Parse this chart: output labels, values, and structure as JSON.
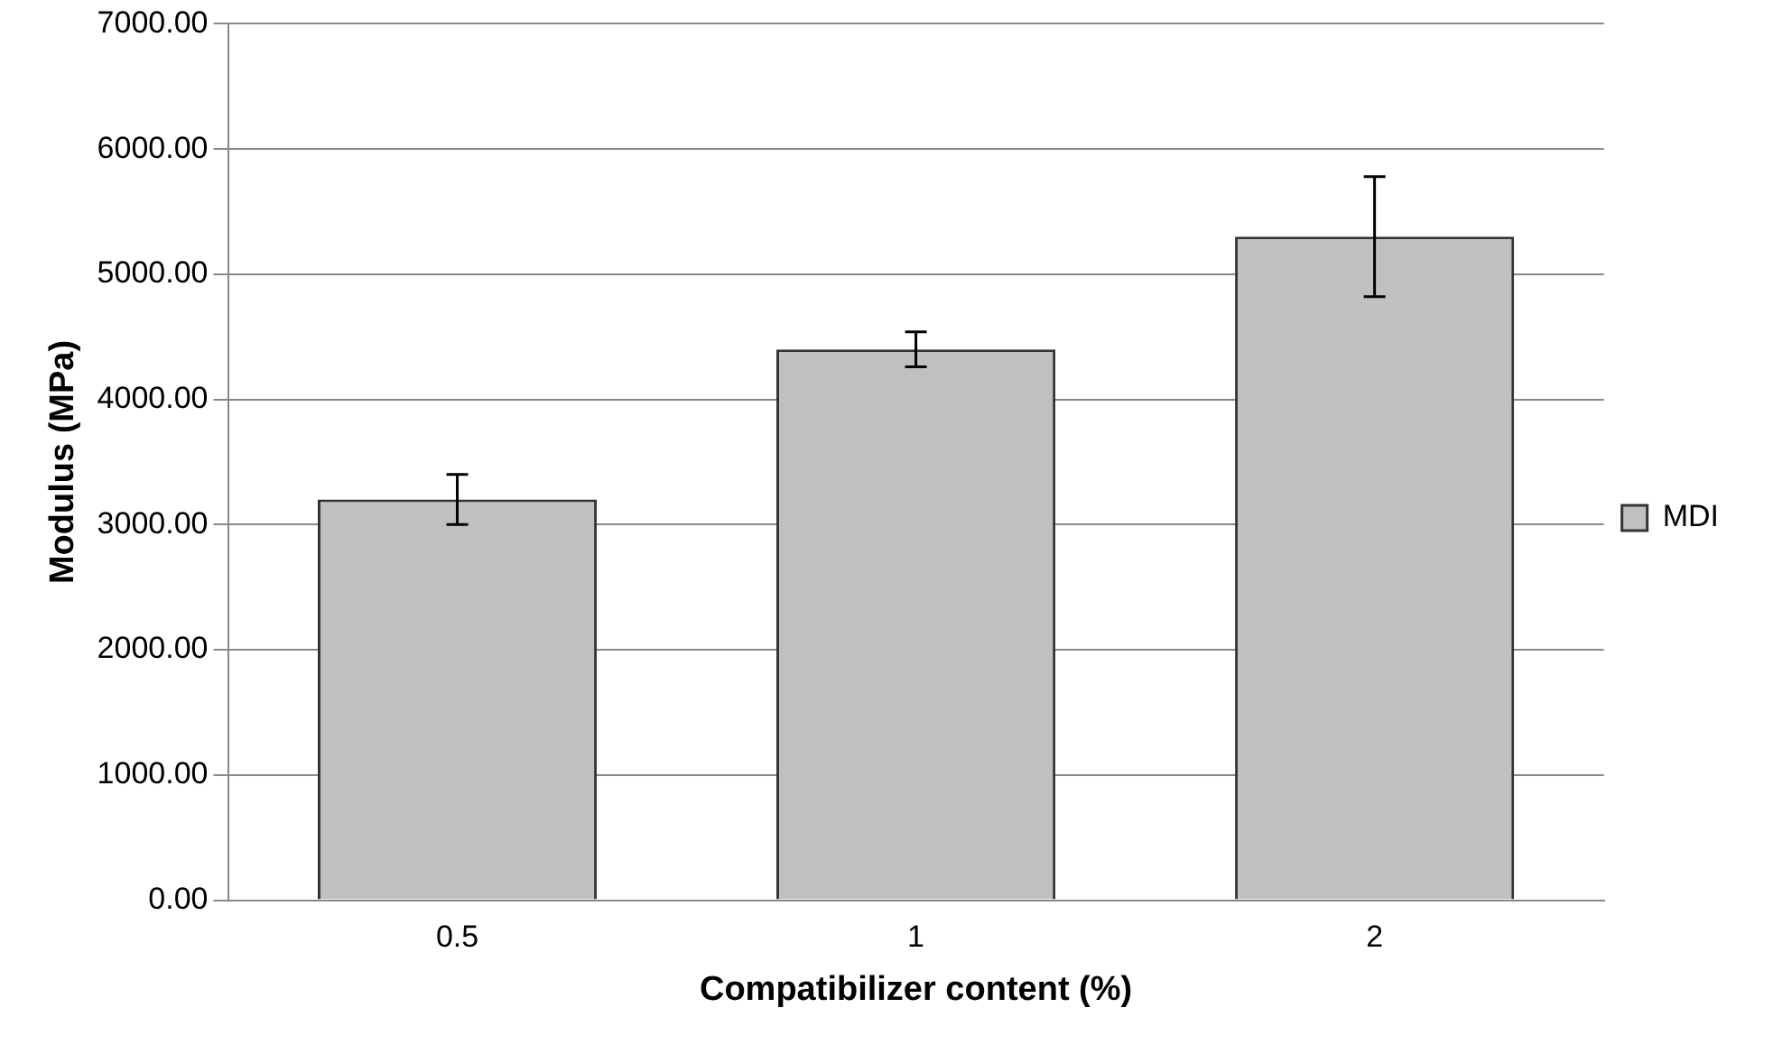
{
  "chart_data": {
    "type": "bar",
    "xlabel": "Compatibilizer content (%)",
    "ylabel": "Modulus (MPa)",
    "categories": [
      "0.5",
      "1",
      "2"
    ],
    "series": [
      {
        "name": "MDI",
        "color": "#c0c0c0",
        "values": [
          3200,
          4400,
          5300
        ],
        "errors": [
          200,
          140,
          480
        ]
      }
    ],
    "ylim": [
      0,
      7000
    ],
    "yticks": [
      {
        "value": 0,
        "label": "0.00"
      },
      {
        "value": 1000,
        "label": "1000.00"
      },
      {
        "value": 2000,
        "label": "2000.00"
      },
      {
        "value": 3000,
        "label": "3000.00"
      },
      {
        "value": 4000,
        "label": "4000.00"
      },
      {
        "value": 5000,
        "label": "5000.00"
      },
      {
        "value": 6000,
        "label": "6000.00"
      },
      {
        "value": 7000,
        "label": "7000.00"
      }
    ],
    "grid": "y",
    "legend": "right"
  }
}
